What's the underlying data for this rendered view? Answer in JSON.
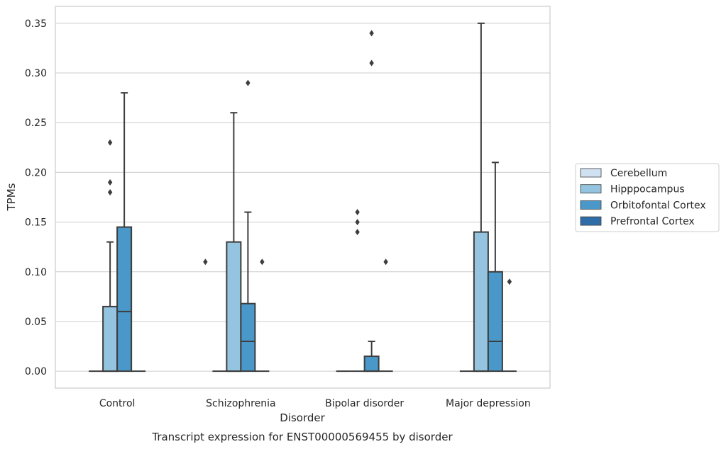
{
  "chart_data": {
    "type": "box",
    "title": "Transcript expression for ENST00000569455 by disorder",
    "xlabel": "Disorder",
    "ylabel": "TPMs",
    "ylim": [
      -0.017,
      0.367
    ],
    "yticks": [
      "0.00",
      "0.05",
      "0.10",
      "0.15",
      "0.20",
      "0.25",
      "0.30",
      "0.35"
    ],
    "grid": true,
    "legend_position": "right",
    "categories": [
      "Control",
      "Schizophrenia",
      "Bipolar disorder",
      "Major depression"
    ],
    "series": [
      {
        "name": "Cerebellum",
        "color": "#d0e1f2",
        "boxes": [
          {
            "q1": 0,
            "median": 0,
            "q3": 0,
            "whislo": 0,
            "whishi": 0,
            "fliers": []
          },
          {
            "q1": 0,
            "median": 0,
            "q3": 0,
            "whislo": 0,
            "whishi": 0,
            "fliers": []
          },
          {
            "q1": 0,
            "median": 0,
            "q3": 0,
            "whislo": 0,
            "whishi": 0,
            "fliers": []
          },
          {
            "q1": 0,
            "median": 0,
            "q3": 0,
            "whislo": 0,
            "whishi": 0,
            "fliers": []
          }
        ]
      },
      {
        "name": "Hipppocampus",
        "color": "#94c4df",
        "boxes": [
          {
            "q1": 0,
            "median": 0,
            "q3": 0.065,
            "whislo": 0,
            "whishi": 0.13,
            "fliers": [
              0.18,
              0.19,
              0.23
            ]
          },
          {
            "q1": 0,
            "median": 0,
            "q3": 0.13,
            "whislo": 0,
            "whishi": 0.26,
            "fliers": []
          },
          {
            "q1": 0,
            "median": 0,
            "q3": 0,
            "whislo": 0,
            "whishi": 0,
            "fliers": [
              0.14,
              0.15,
              0.16
            ]
          },
          {
            "q1": 0,
            "median": 0,
            "q3": 0.14,
            "whislo": 0,
            "whishi": 0.35,
            "fliers": []
          }
        ]
      },
      {
        "name": "Orbitofontal Cortex",
        "color": "#4a98c9",
        "boxes": [
          {
            "q1": 0,
            "median": 0.06,
            "q3": 0.145,
            "whislo": 0,
            "whishi": 0.28,
            "fliers": []
          },
          {
            "q1": 0,
            "median": 0.03,
            "q3": 0.068,
            "whislo": 0,
            "whishi": 0.16,
            "fliers": [
              0.29
            ]
          },
          {
            "q1": 0,
            "median": 0,
            "q3": 0.015,
            "whislo": 0,
            "whishi": 0.03,
            "fliers": [
              0.31,
              0.34
            ]
          },
          {
            "q1": 0,
            "median": 0.03,
            "q3": 0.1,
            "whislo": 0,
            "whishi": 0.21,
            "fliers": []
          }
        ]
      },
      {
        "name": "Prefrontal Cortex",
        "color": "#2e6da8",
        "boxes": [
          {
            "q1": 0,
            "median": 0,
            "q3": 0,
            "whislo": 0,
            "whishi": 0,
            "fliers": []
          },
          {
            "q1": 0,
            "median": 0,
            "q3": 0,
            "whislo": 0,
            "whishi": 0,
            "fliers": [
              0.11
            ]
          },
          {
            "q1": 0,
            "median": 0,
            "q3": 0,
            "whislo": 0,
            "whishi": 0,
            "fliers": [
              0.11
            ]
          },
          {
            "q1": 0,
            "median": 0,
            "q3": 0,
            "whislo": 0,
            "whishi": 0,
            "fliers": [
              0.09
            ]
          }
        ]
      }
    ],
    "left_fliers": [
      {
        "category": "Schizophrenia",
        "value": 0.11
      }
    ]
  }
}
